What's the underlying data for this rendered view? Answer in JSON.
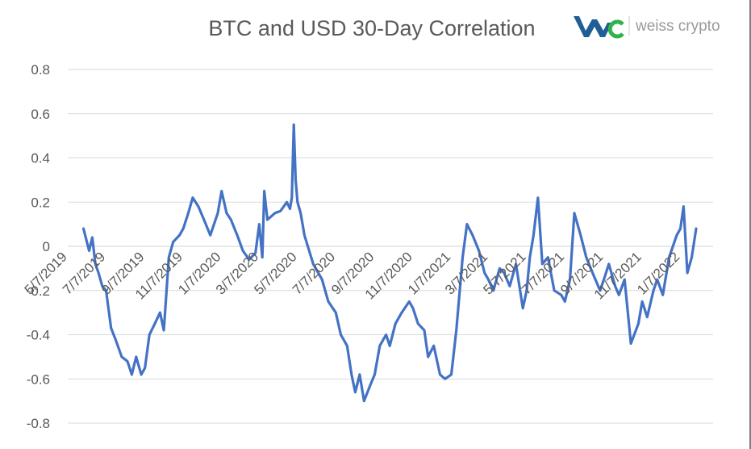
{
  "colors": {
    "series": "#4472c4",
    "grid": "#d9d9d9",
    "text": "#595959",
    "logo_blue": "#1f5f95",
    "logo_green": "#2fb34a",
    "brand_gray": "#9a9a9a"
  },
  "logo": {
    "mark": "WC",
    "brand": "weiss crypto"
  },
  "chart_data": {
    "type": "line",
    "title": "BTC and USD 30-Day Correlation",
    "xlabel": "",
    "ylabel": "",
    "ylim": [
      -0.8,
      0.8
    ],
    "grid": true,
    "legend": "none",
    "y_ticks": [
      "0.8",
      "0.6",
      "0.4",
      "0.2",
      "0",
      "-0.2",
      "-0.4",
      "-0.6",
      "-0.8"
    ],
    "x_ticks": [
      "5/7/2019",
      "7/7/2019",
      "9/7/2019",
      "11/7/2019",
      "1/7/2020",
      "3/7/2020",
      "5/7/2020",
      "7/7/2020",
      "9/7/2020",
      "11/7/2020",
      "1/7/2021",
      "3/7/2021",
      "5/7/2021",
      "7/7/2021",
      "9/7/2021",
      "11/7/2021",
      "1/7/2022"
    ],
    "x": [
      "2019-06-01",
      "2019-06-10",
      "2019-06-15",
      "2019-06-20",
      "2019-06-25",
      "2019-07-01",
      "2019-07-07",
      "2019-07-15",
      "2019-07-22",
      "2019-08-01",
      "2019-08-10",
      "2019-08-17",
      "2019-08-24",
      "2019-09-01",
      "2019-09-07",
      "2019-09-14",
      "2019-09-21",
      "2019-10-01",
      "2019-10-07",
      "2019-10-15",
      "2019-10-22",
      "2019-11-01",
      "2019-11-07",
      "2019-11-15",
      "2019-11-22",
      "2019-12-01",
      "2019-12-10",
      "2019-12-20",
      "2020-01-01",
      "2020-01-07",
      "2020-01-15",
      "2020-01-22",
      "2020-02-01",
      "2020-02-10",
      "2020-02-20",
      "2020-03-01",
      "2020-03-07",
      "2020-03-12",
      "2020-03-15",
      "2020-03-20",
      "2020-04-01",
      "2020-04-10",
      "2020-04-20",
      "2020-04-25",
      "2020-04-28",
      "2020-05-01",
      "2020-05-04",
      "2020-05-07",
      "2020-05-12",
      "2020-05-18",
      "2020-06-01",
      "2020-06-15",
      "2020-06-25",
      "2020-07-07",
      "2020-07-15",
      "2020-07-25",
      "2020-08-01",
      "2020-08-07",
      "2020-08-14",
      "2020-08-21",
      "2020-09-01",
      "2020-09-07",
      "2020-09-15",
      "2020-09-25",
      "2020-10-01",
      "2020-10-10",
      "2020-10-20",
      "2020-11-01",
      "2020-11-07",
      "2020-11-15",
      "2020-11-25",
      "2020-12-01",
      "2020-12-10",
      "2020-12-20",
      "2020-12-28",
      "2021-01-07",
      "2021-01-15",
      "2021-01-25",
      "2021-02-01",
      "2021-02-10",
      "2021-02-20",
      "2021-03-01",
      "2021-03-07",
      "2021-03-15",
      "2021-03-25",
      "2021-04-01",
      "2021-04-10",
      "2021-04-20",
      "2021-05-01",
      "2021-05-07",
      "2021-05-12",
      "2021-05-18",
      "2021-05-25",
      "2021-06-01",
      "2021-06-10",
      "2021-06-20",
      "2021-07-01",
      "2021-07-07",
      "2021-07-15",
      "2021-07-22",
      "2021-08-01",
      "2021-08-10",
      "2021-08-20",
      "2021-09-01",
      "2021-09-07",
      "2021-09-15",
      "2021-09-25",
      "2021-10-01",
      "2021-10-10",
      "2021-10-20",
      "2021-11-01",
      "2021-11-07",
      "2021-11-15",
      "2021-11-25",
      "2021-12-01",
      "2021-12-10",
      "2021-12-20",
      "2022-01-01",
      "2022-01-07",
      "2022-01-12",
      "2022-01-18",
      "2022-01-25",
      "2022-02-01"
    ],
    "series": [
      {
        "values": [
          0.08,
          -0.02,
          0.04,
          -0.08,
          -0.12,
          -0.18,
          -0.2,
          -0.37,
          -0.42,
          -0.5,
          -0.52,
          -0.58,
          -0.5,
          -0.58,
          -0.55,
          -0.4,
          -0.36,
          -0.3,
          -0.38,
          -0.05,
          0.02,
          0.05,
          0.08,
          0.15,
          0.22,
          0.18,
          0.12,
          0.05,
          0.15,
          0.25,
          0.15,
          0.12,
          0.05,
          -0.02,
          -0.06,
          -0.03,
          0.1,
          -0.05,
          0.25,
          0.12,
          0.15,
          0.16,
          0.2,
          0.17,
          0.22,
          0.55,
          0.3,
          0.2,
          0.15,
          0.05,
          -0.08,
          -0.15,
          -0.25,
          -0.3,
          -0.4,
          -0.45,
          -0.58,
          -0.66,
          -0.58,
          -0.7,
          -0.62,
          -0.58,
          -0.45,
          -0.4,
          -0.45,
          -0.35,
          -0.3,
          -0.25,
          -0.28,
          -0.35,
          -0.38,
          -0.5,
          -0.45,
          -0.58,
          -0.6,
          -0.58,
          -0.38,
          -0.05,
          0.1,
          0.05,
          -0.02,
          -0.12,
          -0.15,
          -0.2,
          -0.1,
          -0.12,
          -0.18,
          -0.08,
          -0.28,
          -0.2,
          -0.05,
          0.05,
          0.22,
          -0.08,
          -0.05,
          -0.2,
          -0.22,
          -0.25,
          -0.15,
          0.15,
          0.05,
          -0.05,
          -0.12,
          -0.2,
          -0.15,
          -0.08,
          -0.18,
          -0.22,
          -0.15,
          -0.44,
          -0.35,
          -0.25,
          -0.32,
          -0.2,
          -0.15,
          -0.22,
          -0.05,
          0.05,
          0.08,
          0.18,
          -0.12,
          -0.05,
          0.08
        ]
      }
    ]
  }
}
